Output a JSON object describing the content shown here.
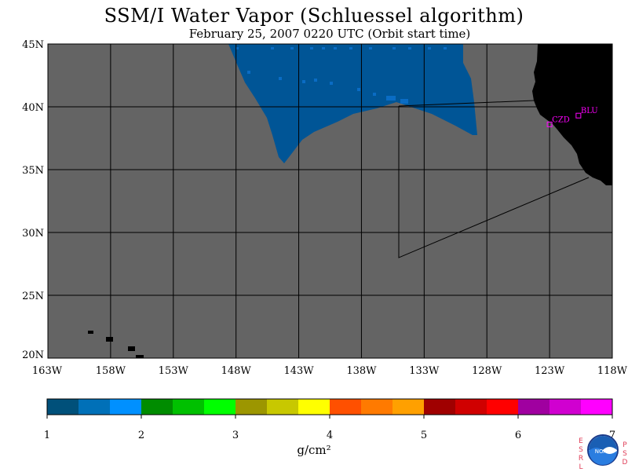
{
  "title": "SSM/I Water Vapor (Schluessel algorithm)",
  "subtitle": "February 25, 2007  0220 UTC  (Orbit start time)",
  "map": {
    "lat_labels": [
      "45N",
      "40N",
      "35N",
      "30N",
      "25N",
      "20N"
    ],
    "lon_labels": [
      "163W",
      "158W",
      "153W",
      "148W",
      "143W",
      "138W",
      "133W",
      "128W",
      "123W",
      "118W"
    ],
    "stations": [
      {
        "name": "CZD",
        "lon": -123.0,
        "lat": 38.6
      },
      {
        "name": "BLU",
        "lon": -120.7,
        "lat": 39.3
      }
    ],
    "ocean_color": "#646464",
    "land_color": "#000000",
    "swath_color": "#005596"
  },
  "colorbar": {
    "colors": [
      "#00507a",
      "#0070b8",
      "#0090ff",
      "#008c00",
      "#00c000",
      "#00ff00",
      "#9c9600",
      "#c8c800",
      "#ffff00",
      "#ff5000",
      "#ff7a00",
      "#ffa000",
      "#a00000",
      "#d00000",
      "#ff0000",
      "#a000a0",
      "#d000d0",
      "#ff00ff"
    ],
    "labels": [
      "1",
      "2",
      "3",
      "4",
      "5",
      "6",
      "7"
    ],
    "units": "g/cm²"
  },
  "logo": {
    "left_text": "ESRL",
    "right_text": "PSD",
    "center_text": "NOAA"
  }
}
